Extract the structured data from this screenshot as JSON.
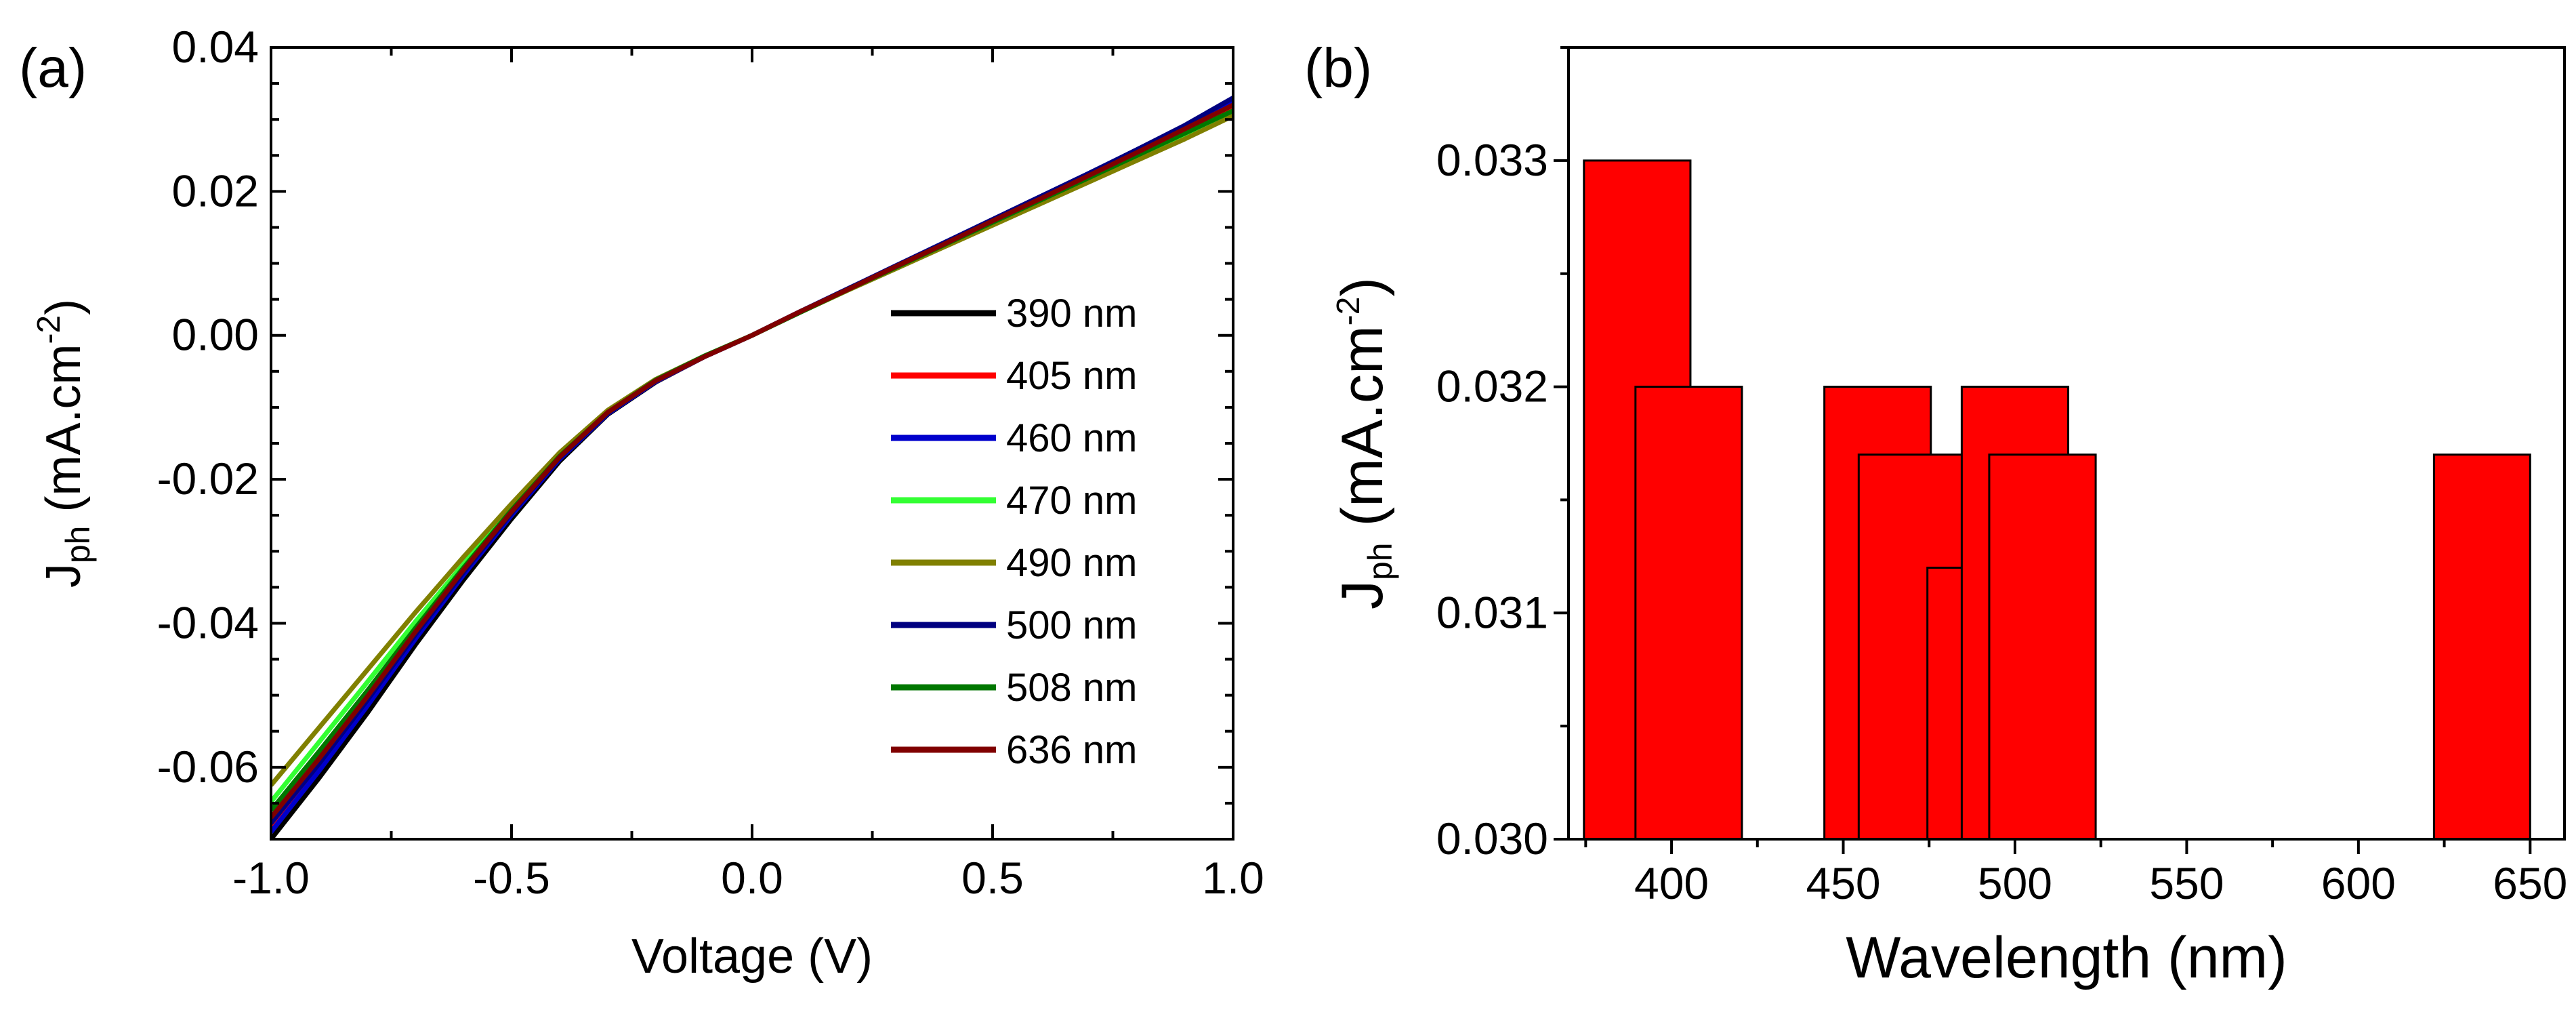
{
  "chart_data": [
    {
      "panel_label": "(a)",
      "type": "line",
      "xlabel": "Voltage (V)",
      "ylabel": {
        "base": "J",
        "sub": "ph",
        "rest": " (mA.cm",
        "sup": "-2",
        "close": ")"
      },
      "xlim": [
        -1.0,
        1.0
      ],
      "ylim": [
        -0.07,
        0.04
      ],
      "xticks": [
        -1.0,
        -0.5,
        0.0,
        0.5,
        1.0
      ],
      "xtick_labels": [
        "-1.0",
        "-0.5",
        "0.0",
        "0.5",
        "1.0"
      ],
      "yticks": [
        -0.06,
        -0.04,
        -0.02,
        0.0,
        0.02,
        0.04
      ],
      "ytick_labels": [
        "-0.06",
        "-0.04",
        "-0.02",
        "0.00",
        "0.02",
        "0.04"
      ],
      "legend_position": "center-right",
      "x": [
        -1.0,
        -0.9,
        -0.8,
        -0.7,
        -0.6,
        -0.5,
        -0.4,
        -0.3,
        -0.2,
        -0.1,
        0.0,
        0.1,
        0.2,
        0.3,
        0.4,
        0.5,
        0.6,
        0.7,
        0.8,
        0.9,
        1.0
      ],
      "series": [
        {
          "name": "390 nm",
          "color": "#000000",
          "values": [
            -0.07,
            -0.0615,
            -0.0525,
            -0.043,
            -0.034,
            -0.0255,
            -0.0175,
            -0.011,
            -0.0065,
            -0.003,
            0.0,
            0.0033,
            0.0064,
            0.0095,
            0.0126,
            0.0157,
            0.0188,
            0.0219,
            0.025,
            0.0283,
            0.0315
          ]
        },
        {
          "name": "405 nm",
          "color": "#ff0000",
          "values": [
            -0.0685,
            -0.06,
            -0.051,
            -0.0418,
            -0.033,
            -0.0248,
            -0.017,
            -0.0108,
            -0.0064,
            -0.003,
            0.0,
            0.0033,
            0.0064,
            0.0095,
            0.0126,
            0.0157,
            0.0188,
            0.0219,
            0.025,
            0.0282,
            0.0315
          ]
        },
        {
          "name": "460 nm",
          "color": "#0000cc",
          "values": [
            -0.069,
            -0.0605,
            -0.0515,
            -0.0422,
            -0.0333,
            -0.025,
            -0.0172,
            -0.0109,
            -0.0064,
            -0.003,
            0.0,
            0.0033,
            0.0065,
            0.0097,
            0.0129,
            0.0161,
            0.0193,
            0.0225,
            0.0258,
            0.0291,
            0.0325
          ]
        },
        {
          "name": "470 nm",
          "color": "#33ff33",
          "values": [
            -0.0648,
            -0.0565,
            -0.0482,
            -0.0398,
            -0.0318,
            -0.024,
            -0.0166,
            -0.0106,
            -0.0062,
            -0.0029,
            0.0,
            0.0032,
            0.0063,
            0.0094,
            0.0125,
            0.0155,
            0.0186,
            0.0216,
            0.0247,
            0.0278,
            0.031
          ]
        },
        {
          "name": "490 nm",
          "color": "#808000",
          "values": [
            -0.0625,
            -0.0545,
            -0.0465,
            -0.0385,
            -0.0308,
            -0.0234,
            -0.0163,
            -0.0104,
            -0.0061,
            -0.0029,
            0.0,
            0.0032,
            0.0063,
            0.0093,
            0.0123,
            0.0153,
            0.0183,
            0.0213,
            0.0243,
            0.0273,
            0.0305
          ]
        },
        {
          "name": "500 nm",
          "color": "#000080",
          "values": [
            -0.0678,
            -0.0595,
            -0.0507,
            -0.0416,
            -0.0329,
            -0.0247,
            -0.017,
            -0.0108,
            -0.0063,
            -0.003,
            0.0,
            0.0033,
            0.0065,
            0.0097,
            0.0129,
            0.0161,
            0.0193,
            0.0225,
            0.0258,
            0.0292,
            0.033
          ]
        },
        {
          "name": "508 nm",
          "color": "#007700",
          "values": [
            -0.066,
            -0.0578,
            -0.0494,
            -0.0407,
            -0.0323,
            -0.0243,
            -0.0168,
            -0.0107,
            -0.0062,
            -0.0029,
            0.0,
            0.0032,
            0.0064,
            0.0095,
            0.0126,
            0.0157,
            0.0188,
            0.0219,
            0.025,
            0.0281,
            0.0312
          ]
        },
        {
          "name": "636 nm",
          "color": "#800000",
          "values": [
            -0.067,
            -0.0588,
            -0.0502,
            -0.0412,
            -0.0326,
            -0.0245,
            -0.0169,
            -0.0107,
            -0.0063,
            -0.003,
            0.0,
            0.0033,
            0.0064,
            0.0096,
            0.0127,
            0.0159,
            0.019,
            0.0222,
            0.0254,
            0.0287,
            0.032
          ]
        }
      ]
    },
    {
      "panel_label": "(b)",
      "type": "bar",
      "xlabel": "Wavelength (nm)",
      "ylabel": {
        "base": "J",
        "sub": "ph",
        "rest": " (mA.cm",
        "sup": "-2",
        "close": ")"
      },
      "xlim": [
        370,
        660
      ],
      "ylim": [
        0.03,
        0.0335
      ],
      "xticks": [
        400,
        450,
        500,
        550,
        600,
        650
      ],
      "xtick_labels": [
        "400",
        "450",
        "500",
        "550",
        "600",
        "650"
      ],
      "yticks": [
        0.03,
        0.031,
        0.032,
        0.033
      ],
      "ytick_labels": [
        "0.030",
        "0.031",
        "0.032",
        "0.033"
      ],
      "bar_color": "#ff0000",
      "bars": [
        {
          "wavelength": 390,
          "width": 31,
          "value": 0.033
        },
        {
          "wavelength": 405,
          "width": 31,
          "value": 0.032
        },
        {
          "wavelength": 460,
          "width": 31,
          "value": 0.032
        },
        {
          "wavelength": 470,
          "width": 31,
          "value": 0.0317
        },
        {
          "wavelength": 480,
          "width": 11,
          "value": 0.0312
        },
        {
          "wavelength": 500,
          "width": 31,
          "value": 0.032
        },
        {
          "wavelength": 508,
          "width": 31,
          "value": 0.0317
        },
        {
          "wavelength": 636,
          "width": 28,
          "value": 0.0317
        }
      ]
    }
  ]
}
